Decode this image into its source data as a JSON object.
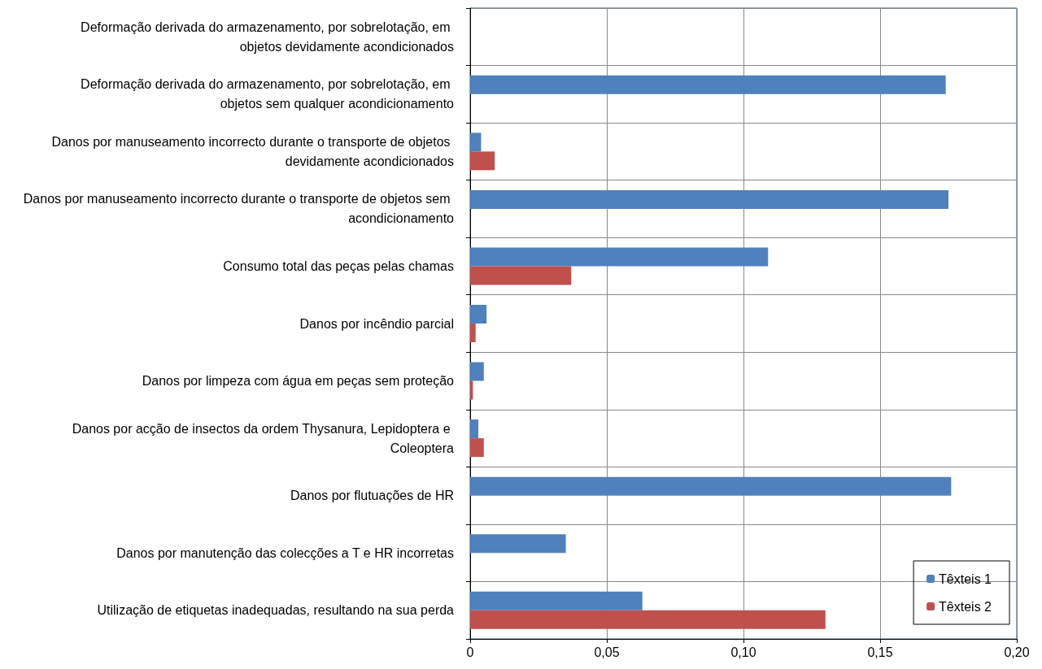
{
  "chart_data": {
    "type": "bar",
    "orientation": "horizontal",
    "categories": [
      "Deformação derivada do armazenamento, por sobrelotação, em objetos devidamente acondicionados",
      "Deformação derivada do armazenamento, por sobrelotação, em objetos sem qualquer acondicionamento",
      "Danos por manuseamento incorrecto durante o transporte de objetos devidamente acondicionados",
      "Danos por manuseamento incorrecto durante o transporte de objetos sem acondicionamento",
      "Consumo total das peças pelas chamas",
      "Danos por incêndio parcial",
      "Danos por limpeza com água em peças sem proteção",
      "Danos por acção de insectos da ordem Thysanura, Lepidoptera e Coleoptera",
      "Danos por flutuações de HR",
      "Danos por manutenção das colecções a T e HR incorretas",
      "Utilização de etiquetas inadequadas, resultando na sua perda"
    ],
    "series": [
      {
        "name": "Têxteis 1",
        "color": "#4f81bd",
        "values": [
          null,
          0.174,
          0.004,
          0.175,
          0.109,
          0.006,
          0.005,
          0.003,
          0.176,
          0.035,
          0.063
        ]
      },
      {
        "name": "Têxteis 2",
        "color": "#c0504d",
        "values": [
          null,
          null,
          0.009,
          null,
          0.037,
          0.002,
          0.001,
          0.005,
          null,
          null,
          0.13
        ]
      }
    ],
    "xlim": [
      0,
      0.2
    ],
    "xticks": [
      0,
      {
        "value": 0.05,
        "label": "0,05"
      },
      {
        "value": 0.1,
        "label": "0,10"
      },
      {
        "value": 0.15,
        "label": "0,15"
      },
      {
        "value": 0.2,
        "label": "0,20"
      }
    ],
    "grid": true,
    "legend": "bottom right"
  }
}
